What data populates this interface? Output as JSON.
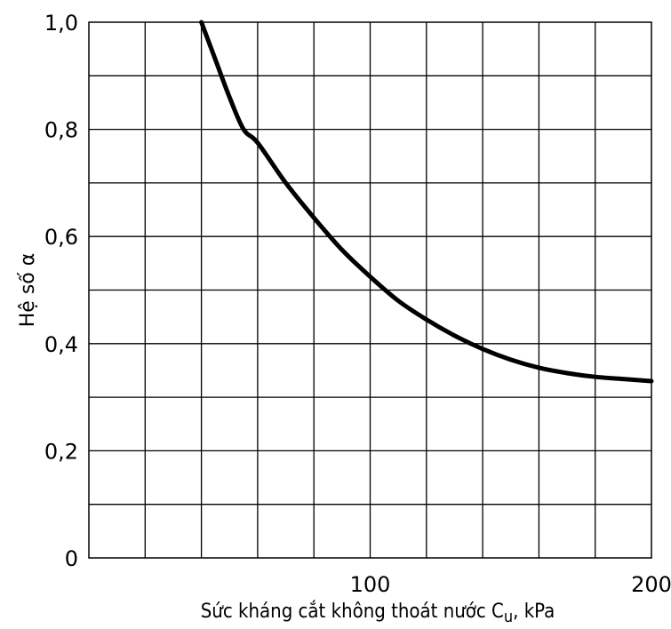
{
  "chart_data": {
    "type": "line",
    "title": "",
    "xlabel_main": "Sức kháng cắt không thoát nước C",
    "xlabel_sub": "u",
    "xlabel_tail": ", kPa",
    "ylabel": "Hệ số α",
    "xlim": [
      0,
      200
    ],
    "ylim": [
      0,
      1.0
    ],
    "grid": true,
    "x_grid_step": 20,
    "y_grid_step": 0.1,
    "x_ticks": [
      {
        "value": 100,
        "label": "100"
      },
      {
        "value": 200,
        "label": "200"
      }
    ],
    "y_ticks": [
      {
        "value": 0,
        "label": "0"
      },
      {
        "value": 0.2,
        "label": "0,2"
      },
      {
        "value": 0.4,
        "label": "0,4"
      },
      {
        "value": 0.6,
        "label": "0,6"
      },
      {
        "value": 0.8,
        "label": "0,8"
      },
      {
        "value": 1.0,
        "label": "1,0"
      }
    ],
    "series": [
      {
        "x": [
          40,
          45,
          50,
          55,
          60,
          70,
          80,
          90,
          100,
          110,
          120,
          130,
          140,
          150,
          160,
          170,
          180,
          190,
          200
        ],
        "y": [
          1.0,
          0.93,
          0.86,
          0.8,
          0.775,
          0.7,
          0.635,
          0.575,
          0.525,
          0.48,
          0.445,
          0.415,
          0.39,
          0.37,
          0.355,
          0.345,
          0.338,
          0.334,
          0.33
        ]
      }
    ]
  }
}
